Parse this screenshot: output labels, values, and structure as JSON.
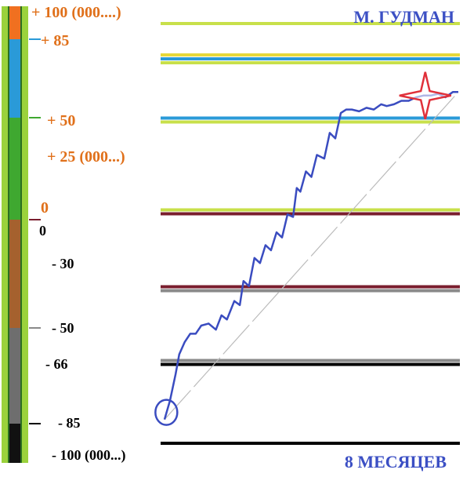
{
  "title": "М. ГУДМАН",
  "footer": "8 МЕСЯЦЕВ",
  "colors": {
    "title": "#3b4fc4",
    "orange_labels": "#e0701a",
    "black_labels": "#000000",
    "path": "#3a4cc0",
    "star": "#e0303a",
    "circle": "#3a4cc0"
  },
  "scale": {
    "upper_labels": [
      "+ 100   (000....)",
      "+  85",
      "+  50",
      "+  25   (000...)",
      "0"
    ],
    "lower_labels": [
      "0",
      "-  30",
      "-  50",
      "-  66",
      "-  85",
      "-  100   (000...)"
    ],
    "segments": [
      {
        "from": 85,
        "to": 100,
        "color": "#f07020"
      },
      {
        "from": 50,
        "to": 85,
        "color": "#2a9ad8"
      },
      {
        "from": 0,
        "to": 50,
        "color": "#3fa830"
      },
      {
        "from": -50,
        "to": 0,
        "color": "#a5612e"
      },
      {
        "from": -85,
        "to": -50,
        "color": "#6e6e6e"
      },
      {
        "from": -100,
        "to": -85,
        "color": "#111111"
      }
    ],
    "side_color": "#9bd23c"
  },
  "chart_data": {
    "type": "line",
    "title": "М. ГУДМАН",
    "xlabel": "8 МЕСЯЦЕВ",
    "levels": [
      {
        "value": 100,
        "colors": [
          "#c8e04a"
        ]
      },
      {
        "value": 85,
        "colors": [
          "#e6d83a",
          "#2a9ad8",
          "#c8e04a"
        ]
      },
      {
        "value": 50,
        "colors": [
          "#2a9ad8",
          "#c8e04a"
        ]
      },
      {
        "value": 0,
        "colors": [
          "#c8e04a",
          "#7a1e2e"
        ]
      },
      {
        "value": -30,
        "colors": [
          "#7a1e2e",
          "#8a8a8a"
        ]
      },
      {
        "value": -66,
        "colors": [
          "#8a8a8a",
          "#000000"
        ]
      },
      {
        "value": -100,
        "colors": [
          "#000000"
        ]
      }
    ],
    "series": [
      {
        "x": [
          0,
          0.15,
          0.3,
          0.4,
          0.55,
          0.7,
          0.85,
          1.0,
          1.2,
          1.4,
          1.55,
          1.7,
          1.9,
          2.05,
          2.15,
          2.3,
          2.45,
          2.6,
          2.75,
          2.9,
          3.05,
          3.2,
          3.35,
          3.5,
          3.6,
          3.7,
          3.85,
          4.0,
          4.15,
          4.35,
          4.5,
          4.65,
          4.8,
          4.95,
          5.1,
          5.3,
          5.5,
          5.7,
          5.9,
          6.05,
          6.25,
          6.45,
          6.65,
          6.85,
          7.05,
          7.25,
          7.45,
          7.65,
          7.85,
          8.0
        ],
        "y": [
          -90,
          -82,
          -71,
          -62,
          -56,
          -52,
          -52,
          -48,
          -47,
          -50,
          -43,
          -45,
          -36,
          -38,
          -27,
          -29,
          -18,
          -20,
          -13,
          -15,
          -8,
          -10,
          -1,
          -2,
          13,
          11,
          22,
          19,
          31,
          29,
          43,
          40,
          54,
          56,
          56,
          55,
          57,
          56,
          59,
          58,
          59,
          61,
          61,
          63,
          64,
          64,
          65,
          63,
          66,
          66
        ]
      }
    ],
    "trend": {
      "x": [
        0,
        8
      ],
      "y": [
        -90,
        66
      ]
    },
    "annotations": {
      "star": {
        "x": 7.1,
        "y": 64
      },
      "circle": {
        "x": 0.05,
        "y": -87
      }
    },
    "xlim": [
      0,
      8
    ],
    "ylim": [
      -100,
      100
    ]
  }
}
